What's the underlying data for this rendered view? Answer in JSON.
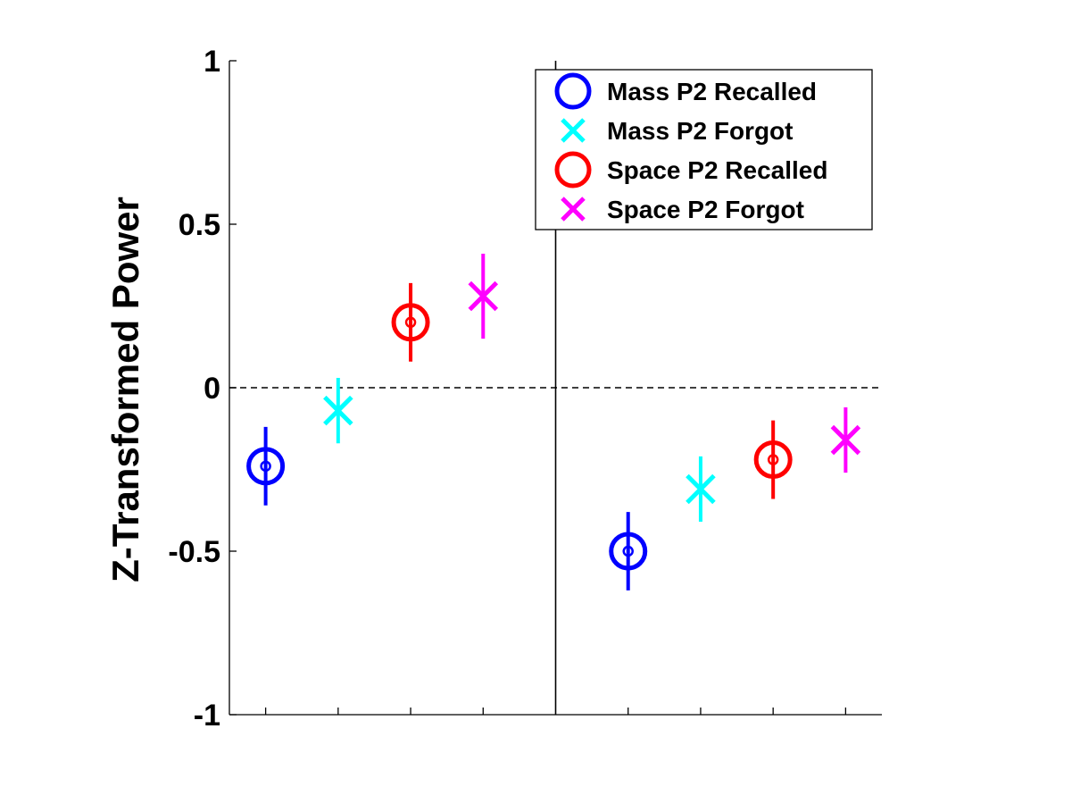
{
  "chart_data": {
    "type": "scatter",
    "title": "",
    "xlabel": "",
    "ylabel": "Z-Transformed Power",
    "ylim": [
      -1,
      1
    ],
    "yticks": [
      -1,
      -0.5,
      0,
      0.5,
      1
    ],
    "ytick_labels": [
      "-1",
      "-0.5",
      "0",
      "0.5",
      "1"
    ],
    "xlim": [
      0.5,
      9.5
    ],
    "xticks": [
      1,
      2,
      3,
      4,
      6,
      7,
      8,
      9
    ],
    "zero_line": "dashed",
    "divider_x": 5,
    "grid": false,
    "legend_position": "top-right",
    "series": [
      {
        "name": "Mass P2 Recalled",
        "marker": "circle",
        "color": "#0000ff",
        "points": [
          {
            "x": 1,
            "y": -0.24,
            "err": 0.12
          },
          {
            "x": 6,
            "y": -0.5,
            "err": 0.12
          }
        ]
      },
      {
        "name": "Mass P2 Forgot",
        "marker": "x",
        "color": "#00ffff",
        "points": [
          {
            "x": 2,
            "y": -0.07,
            "err": 0.1
          },
          {
            "x": 7,
            "y": -0.31,
            "err": 0.1
          }
        ]
      },
      {
        "name": "Space P2 Recalled",
        "marker": "circle",
        "color": "#ff0000",
        "points": [
          {
            "x": 3,
            "y": 0.2,
            "err": 0.12
          },
          {
            "x": 8,
            "y": -0.22,
            "err": 0.12
          }
        ]
      },
      {
        "name": "Space P2 Forgot",
        "marker": "x",
        "color": "#ff00ff",
        "points": [
          {
            "x": 4,
            "y": 0.28,
            "err": 0.13
          },
          {
            "x": 9,
            "y": -0.16,
            "err": 0.1
          }
        ]
      }
    ]
  }
}
